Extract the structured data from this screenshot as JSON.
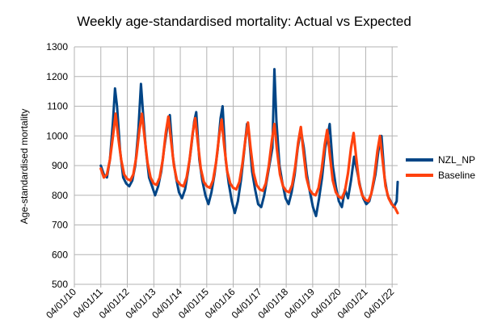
{
  "chart_data": {
    "type": "line",
    "title": "Weekly age-standardised mortality: Actual vs Expected",
    "xlabel": "",
    "ylabel": "Age-standardised mortality",
    "ylim": [
      500,
      1300
    ],
    "yticks": [
      500,
      600,
      700,
      800,
      900,
      1000,
      1100,
      1200,
      1300
    ],
    "xlim": [
      "2010-01-04",
      "2022-03-21"
    ],
    "xtick_dates": [
      "2010-01-04",
      "2011-01-04",
      "2012-01-04",
      "2013-01-04",
      "2014-01-04",
      "2015-01-04",
      "2016-01-04",
      "2017-01-04",
      "2018-01-04",
      "2019-01-04",
      "2020-01-04",
      "2021-01-04",
      "2022-01-04"
    ],
    "xtick_labels": [
      "04/01/10",
      "04/01/11",
      "04/01/12",
      "04/01/13",
      "04/01/14",
      "04/01/15",
      "04/01/16",
      "04/01/17",
      "04/01/18",
      "04/01/19",
      "04/01/20",
      "04/01/21",
      "04/01/22"
    ],
    "grid": true,
    "legend_position": "right",
    "series": [
      {
        "name": "NZL_NP",
        "color": "#004586",
        "points": [
          [
            "2011-01-04",
            900
          ],
          [
            "2011-02-15",
            870
          ],
          [
            "2011-03-29",
            860
          ],
          [
            "2011-05-10",
            920
          ],
          [
            "2011-06-21",
            1050
          ],
          [
            "2011-07-19",
            1160
          ],
          [
            "2011-08-16",
            1100
          ],
          [
            "2011-09-27",
            950
          ],
          [
            "2011-11-08",
            860
          ],
          [
            "2011-12-20",
            840
          ],
          [
            "2012-01-31",
            830
          ],
          [
            "2012-03-13",
            850
          ],
          [
            "2012-04-24",
            900
          ],
          [
            "2012-06-05",
            1020
          ],
          [
            "2012-07-10",
            1175
          ],
          [
            "2012-08-07",
            1080
          ],
          [
            "2012-09-18",
            950
          ],
          [
            "2012-10-30",
            860
          ],
          [
            "2012-12-11",
            830
          ],
          [
            "2013-01-22",
            800
          ],
          [
            "2013-03-05",
            830
          ],
          [
            "2013-04-16",
            880
          ],
          [
            "2013-05-28",
            960
          ],
          [
            "2013-07-09",
            1030
          ],
          [
            "2013-08-13",
            1070
          ],
          [
            "2013-09-24",
            930
          ],
          [
            "2013-11-05",
            860
          ],
          [
            "2013-12-17",
            810
          ],
          [
            "2014-01-28",
            790
          ],
          [
            "2014-03-11",
            820
          ],
          [
            "2014-04-22",
            880
          ],
          [
            "2014-06-03",
            960
          ],
          [
            "2014-07-15",
            1050
          ],
          [
            "2014-08-12",
            1080
          ],
          [
            "2014-09-23",
            920
          ],
          [
            "2014-11-04",
            850
          ],
          [
            "2014-12-16",
            800
          ],
          [
            "2015-01-27",
            770
          ],
          [
            "2015-03-10",
            810
          ],
          [
            "2015-04-21",
            870
          ],
          [
            "2015-06-02",
            950
          ],
          [
            "2015-07-14",
            1060
          ],
          [
            "2015-08-11",
            1100
          ],
          [
            "2015-09-22",
            920
          ],
          [
            "2015-11-03",
            840
          ],
          [
            "2015-12-15",
            780
          ],
          [
            "2016-01-26",
            740
          ],
          [
            "2016-03-08",
            780
          ],
          [
            "2016-04-19",
            850
          ],
          [
            "2016-05-31",
            940
          ],
          [
            "2016-07-12",
            1040
          ],
          [
            "2016-08-09",
            1000
          ],
          [
            "2016-09-20",
            880
          ],
          [
            "2016-11-01",
            820
          ],
          [
            "2016-12-13",
            770
          ],
          [
            "2017-01-24",
            760
          ],
          [
            "2017-03-07",
            800
          ],
          [
            "2017-04-18",
            860
          ],
          [
            "2017-05-30",
            920
          ],
          [
            "2017-06-27",
            960
          ],
          [
            "2017-07-25",
            1225
          ],
          [
            "2017-08-22",
            1050
          ],
          [
            "2017-10-03",
            900
          ],
          [
            "2017-11-14",
            840
          ],
          [
            "2017-12-26",
            790
          ],
          [
            "2018-02-06",
            770
          ],
          [
            "2018-03-20",
            810
          ],
          [
            "2018-05-01",
            870
          ],
          [
            "2018-06-12",
            960
          ],
          [
            "2018-07-24",
            1020
          ],
          [
            "2018-09-04",
            960
          ],
          [
            "2018-10-16",
            870
          ],
          [
            "2018-11-27",
            810
          ],
          [
            "2019-01-08",
            760
          ],
          [
            "2019-02-19",
            730
          ],
          [
            "2019-04-02",
            790
          ],
          [
            "2019-05-14",
            860
          ],
          [
            "2019-06-25",
            960
          ],
          [
            "2019-07-30",
            1000
          ],
          [
            "2019-08-27",
            1040
          ],
          [
            "2019-10-08",
            900
          ],
          [
            "2019-11-19",
            830
          ],
          [
            "2019-12-31",
            780
          ],
          [
            "2020-02-11",
            760
          ],
          [
            "2020-03-24",
            820
          ],
          [
            "2020-05-05",
            790
          ],
          [
            "2020-06-16",
            850
          ],
          [
            "2020-07-28",
            930
          ],
          [
            "2020-09-08",
            880
          ],
          [
            "2020-10-20",
            830
          ],
          [
            "2020-12-01",
            790
          ],
          [
            "2021-01-12",
            770
          ],
          [
            "2021-02-23",
            780
          ],
          [
            "2021-04-06",
            820
          ],
          [
            "2021-05-18",
            870
          ],
          [
            "2021-06-29",
            950
          ],
          [
            "2021-08-10",
            1000
          ],
          [
            "2021-09-21",
            860
          ],
          [
            "2021-11-02",
            800
          ],
          [
            "2021-12-14",
            780
          ],
          [
            "2022-01-25",
            760
          ],
          [
            "2022-03-08",
            780
          ],
          [
            "2022-03-21",
            845
          ]
        ]
      },
      {
        "name": "Baseline",
        "color": "#ff420e",
        "points": [
          [
            "2011-01-04",
            890
          ],
          [
            "2011-02-15",
            860
          ],
          [
            "2011-03-29",
            870
          ],
          [
            "2011-05-10",
            920
          ],
          [
            "2011-06-21",
            1000
          ],
          [
            "2011-07-26",
            1075
          ],
          [
            "2011-08-30",
            1000
          ],
          [
            "2011-10-11",
            920
          ],
          [
            "2011-11-22",
            870
          ],
          [
            "2012-01-03",
            855
          ],
          [
            "2012-02-14",
            850
          ],
          [
            "2012-03-27",
            870
          ],
          [
            "2012-05-08",
            930
          ],
          [
            "2012-06-19",
            1020
          ],
          [
            "2012-07-24",
            1075
          ],
          [
            "2012-08-28",
            1000
          ],
          [
            "2012-10-09",
            910
          ],
          [
            "2012-11-20",
            860
          ],
          [
            "2013-01-01",
            840
          ],
          [
            "2013-02-12",
            835
          ],
          [
            "2013-03-26",
            860
          ],
          [
            "2013-05-07",
            920
          ],
          [
            "2013-06-18",
            1010
          ],
          [
            "2013-07-23",
            1065
          ],
          [
            "2013-08-27",
            990
          ],
          [
            "2013-10-08",
            900
          ],
          [
            "2013-11-19",
            850
          ],
          [
            "2014-01-07",
            835
          ],
          [
            "2014-02-18",
            830
          ],
          [
            "2014-04-01",
            860
          ],
          [
            "2014-05-13",
            920
          ],
          [
            "2014-06-24",
            1010
          ],
          [
            "2014-07-29",
            1060
          ],
          [
            "2014-09-02",
            980
          ],
          [
            "2014-10-14",
            890
          ],
          [
            "2014-11-25",
            845
          ],
          [
            "2015-01-06",
            830
          ],
          [
            "2015-02-17",
            825
          ],
          [
            "2015-03-31",
            850
          ],
          [
            "2015-05-12",
            910
          ],
          [
            "2015-06-23",
            1000
          ],
          [
            "2015-07-28",
            1055
          ],
          [
            "2015-09-01",
            970
          ],
          [
            "2015-10-13",
            880
          ],
          [
            "2015-11-24",
            840
          ],
          [
            "2016-01-05",
            825
          ],
          [
            "2016-02-16",
            820
          ],
          [
            "2016-03-29",
            845
          ],
          [
            "2016-05-10",
            905
          ],
          [
            "2016-06-21",
            990
          ],
          [
            "2016-07-26",
            1045
          ],
          [
            "2016-08-30",
            960
          ],
          [
            "2016-10-11",
            875
          ],
          [
            "2016-11-22",
            835
          ],
          [
            "2017-01-03",
            820
          ],
          [
            "2017-02-14",
            815
          ],
          [
            "2017-03-28",
            840
          ],
          [
            "2017-05-09",
            900
          ],
          [
            "2017-06-20",
            985
          ],
          [
            "2017-07-25",
            1040
          ],
          [
            "2017-08-29",
            955
          ],
          [
            "2017-10-10",
            870
          ],
          [
            "2017-11-21",
            830
          ],
          [
            "2018-01-02",
            815
          ],
          [
            "2018-02-13",
            810
          ],
          [
            "2018-03-27",
            835
          ],
          [
            "2018-05-08",
            895
          ],
          [
            "2018-06-19",
            980
          ],
          [
            "2018-07-24",
            1030
          ],
          [
            "2018-08-28",
            950
          ],
          [
            "2018-10-09",
            860
          ],
          [
            "2018-11-20",
            820
          ],
          [
            "2019-01-01",
            805
          ],
          [
            "2019-02-12",
            800
          ],
          [
            "2019-03-26",
            825
          ],
          [
            "2019-05-07",
            885
          ],
          [
            "2019-06-18",
            970
          ],
          [
            "2019-07-23",
            1020
          ],
          [
            "2019-08-27",
            940
          ],
          [
            "2019-10-08",
            850
          ],
          [
            "2019-11-19",
            810
          ],
          [
            "2019-12-31",
            795
          ],
          [
            "2020-02-11",
            790
          ],
          [
            "2020-03-24",
            815
          ],
          [
            "2020-05-05",
            875
          ],
          [
            "2020-06-16",
            960
          ],
          [
            "2020-07-21",
            1010
          ],
          [
            "2020-08-25",
            930
          ],
          [
            "2020-10-06",
            840
          ],
          [
            "2020-11-17",
            800
          ],
          [
            "2020-12-29",
            785
          ],
          [
            "2021-02-09",
            780
          ],
          [
            "2021-03-23",
            805
          ],
          [
            "2021-05-04",
            865
          ],
          [
            "2021-06-15",
            950
          ],
          [
            "2021-07-20",
            1000
          ],
          [
            "2021-08-24",
            920
          ],
          [
            "2021-10-05",
            830
          ],
          [
            "2021-11-16",
            790
          ],
          [
            "2021-12-28",
            770
          ],
          [
            "2022-02-08",
            760
          ],
          [
            "2022-03-21",
            740
          ]
        ]
      }
    ]
  }
}
